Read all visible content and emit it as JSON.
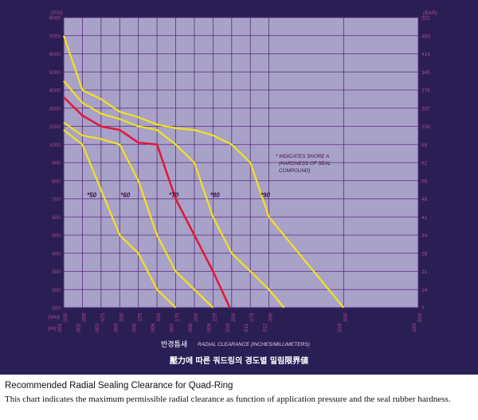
{
  "chart_data": {
    "type": "line",
    "left_axis_unit": "(PSI)",
    "right_axis_unit": "(BAR)",
    "psi_ticks": [
      "8000",
      "7000",
      "6000",
      "5000",
      "4000",
      "3000",
      "2000",
      "1000",
      "900",
      "800",
      "700",
      "600",
      "500",
      "400",
      "300",
      "200",
      "100"
    ],
    "bar_ticks": [
      "552",
      "483",
      "414",
      "345",
      "276",
      "207",
      "138",
      "69",
      "62",
      "55",
      "48",
      "41",
      "34",
      "28",
      "21",
      "14",
      "7"
    ],
    "x_ticks_mm": [
      ".025",
      ".050",
      ".075",
      ".100",
      ".125",
      ".150",
      ".175",
      ".200",
      ".225",
      ".250",
      ".275",
      ".300",
      ".400",
      ".500"
    ],
    "x_ticks_in": [
      ".001",
      ".002",
      ".003",
      ".004",
      ".005",
      ".006",
      ".007",
      ".008",
      ".009",
      ".010",
      ".011",
      ".012",
      ".016",
      ".020"
    ],
    "x_positions": [
      0.001,
      0.002,
      0.003,
      0.004,
      0.005,
      0.006,
      0.007,
      0.008,
      0.009,
      0.01,
      0.011,
      0.012,
      0.016,
      0.02
    ],
    "mm_row_label": "(MM)",
    "in_row_label": "(IN)",
    "x_title_ko": "반경틈새",
    "x_title": "RADIAL CLEARANCE (INCHES/MILLIMETERS)",
    "note": [
      "* INDICATES SHORE A",
      "(HARDNESS OF SEAL",
      "COMPOUND)"
    ],
    "hardness_labels": [
      {
        "text": "*50",
        "x": 0.0025,
        "y": 700
      },
      {
        "text": "*60",
        "x": 0.0043,
        "y": 700
      },
      {
        "text": "*70",
        "x": 0.0069,
        "y": 700
      },
      {
        "text": "*80",
        "x": 0.0091,
        "y": 700
      },
      {
        "text": "*90",
        "x": 0.0118,
        "y": 700
      }
    ],
    "series": [
      {
        "highlight": false,
        "points": [
          [
            0.001,
            1800
          ],
          [
            0.002,
            1000
          ],
          [
            0.003,
            750
          ],
          [
            0.004,
            500
          ],
          [
            0.005,
            400
          ],
          [
            0.006,
            200
          ],
          [
            0.007,
            100
          ]
        ]
      },
      {
        "highlight": false,
        "points": [
          [
            0.001,
            2200
          ],
          [
            0.002,
            1500
          ],
          [
            0.003,
            1300
          ],
          [
            0.004,
            1000
          ],
          [
            0.005,
            800
          ],
          [
            0.006,
            500
          ],
          [
            0.007,
            300
          ],
          [
            0.008,
            200
          ],
          [
            0.009,
            100
          ]
        ]
      },
      {
        "highlight": false,
        "points": [
          [
            0.001,
            4500
          ],
          [
            0.002,
            3300
          ],
          [
            0.003,
            2700
          ],
          [
            0.004,
            2400
          ],
          [
            0.005,
            2000
          ],
          [
            0.006,
            1800
          ],
          [
            0.007,
            1000
          ],
          [
            0.008,
            900
          ],
          [
            0.009,
            600
          ],
          [
            0.01,
            400
          ],
          [
            0.011,
            300
          ],
          [
            0.012,
            200
          ],
          [
            0.0128,
            100
          ]
        ]
      },
      {
        "highlight": true,
        "points": [
          [
            0.001,
            3600
          ],
          [
            0.002,
            2600
          ],
          [
            0.003,
            2000
          ],
          [
            0.004,
            1800
          ],
          [
            0.005,
            1100
          ],
          [
            0.006,
            1000
          ],
          [
            0.007,
            700
          ],
          [
            0.008,
            500
          ],
          [
            0.009,
            300
          ],
          [
            0.0099,
            100
          ]
        ]
      },
      {
        "highlight": false,
        "points": [
          [
            0.001,
            7000
          ],
          [
            0.002,
            4000
          ],
          [
            0.003,
            3500
          ],
          [
            0.004,
            2800
          ],
          [
            0.005,
            2500
          ],
          [
            0.006,
            2100
          ],
          [
            0.007,
            1900
          ],
          [
            0.008,
            1800
          ],
          [
            0.009,
            1500
          ],
          [
            0.01,
            1000
          ],
          [
            0.011,
            900
          ],
          [
            0.012,
            600
          ],
          [
            0.016,
            100
          ]
        ]
      }
    ],
    "colors": {
      "background": "#a8a2c8",
      "grid": "#5a2a7a",
      "curve": "#f2e21e",
      "highlight": "#e11a3c",
      "axis_band": "#2a1f55"
    }
  },
  "banner": "壓力에 따른 쿼드링의 경도별 밀림限界値",
  "caption": {
    "title": "Recommended Radial Sealing Clearance for Quad-Ring",
    "text": "This chart indicates the maximum permissible radial clearance as function of application pressure and the seal rubber hardness."
  }
}
